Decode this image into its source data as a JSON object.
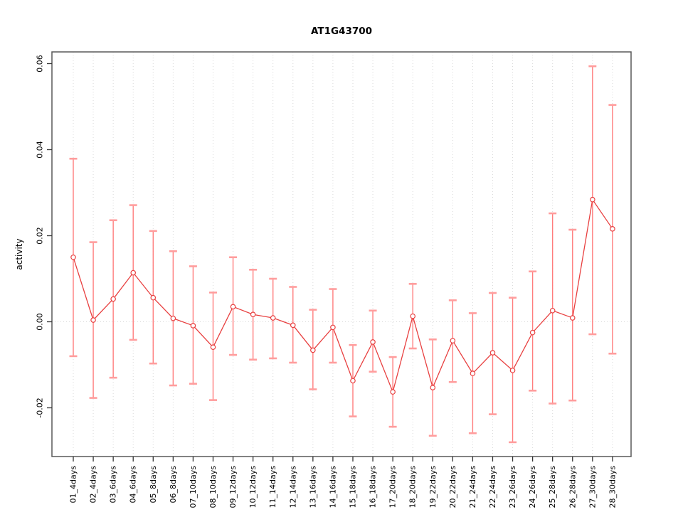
{
  "chart_data": {
    "type": "line",
    "title": "AT1G43700",
    "xlabel": "",
    "ylabel": "activity",
    "legend": "none",
    "grid": "dotted vertical line per category; dotted horizontal line at y=0",
    "marker": "open-circle",
    "error_bars": true,
    "ylim": [
      -0.0313,
      0.0627
    ],
    "ytick_values": [
      -0.02,
      0,
      0.02,
      0.04,
      0.06
    ],
    "ytick_labels": [
      "-0.02",
      "0.00",
      "0.02",
      "0.04",
      "0.06"
    ],
    "categories": [
      "01_4days",
      "02_4days",
      "03_6days",
      "04_6days",
      "05_8days",
      "06_8days",
      "07_10days",
      "08_10days",
      "09_12days",
      "10_12days",
      "11_14days",
      "12_14days",
      "13_16days",
      "14_16days",
      "15_18days",
      "16_18days",
      "17_20days",
      "18_20days",
      "19_22days",
      "20_22days",
      "21_24days",
      "22_24days",
      "23_26days",
      "24_26days",
      "25_28days",
      "26_28days",
      "27_30days",
      "28_30days"
    ],
    "series": [
      {
        "name": "activity",
        "values": [
          0.015,
          0.0004,
          0.0053,
          0.0114,
          0.0056,
          0.0008,
          -0.0009,
          -0.0059,
          0.0035,
          0.0017,
          0.0009,
          -0.0008,
          -0.0066,
          -0.0013,
          -0.0137,
          -0.0047,
          -0.0163,
          0.0013,
          -0.0153,
          -0.0044,
          -0.012,
          -0.0072,
          -0.0113,
          -0.0025,
          0.0026,
          0.0009,
          0.0284,
          0.0216
        ],
        "error_upper": [
          0.0379,
          0.0185,
          0.0236,
          0.0271,
          0.0211,
          0.0164,
          0.0129,
          0.0068,
          0.015,
          0.0121,
          0.01,
          0.0081,
          0.0028,
          0.0076,
          -0.0054,
          0.0026,
          -0.0082,
          0.0088,
          -0.0041,
          0.005,
          0.002,
          0.0067,
          0.0056,
          0.0117,
          0.0252,
          0.0214,
          0.0594,
          0.0504
        ],
        "error_lower": [
          -0.008,
          -0.0177,
          -0.013,
          -0.0042,
          -0.0097,
          -0.0148,
          -0.0144,
          -0.0182,
          -0.0077,
          -0.0088,
          -0.0085,
          -0.0095,
          -0.0157,
          -0.0095,
          -0.022,
          -0.0116,
          -0.0244,
          -0.0062,
          -0.0265,
          -0.014,
          -0.0259,
          -0.0215,
          -0.028,
          -0.016,
          -0.019,
          -0.0183,
          -0.0029,
          -0.0074
        ]
      }
    ],
    "colors": {
      "line": "#e84040",
      "marker_stroke": "#e84040",
      "marker_fill": "#ffffff",
      "errorbar": "#ff7d7d",
      "errorbar_cap": "#ff9d9d",
      "grid": "#d9d9d9",
      "box": "#595959",
      "tick": "#333333",
      "text": "#000000"
    }
  }
}
